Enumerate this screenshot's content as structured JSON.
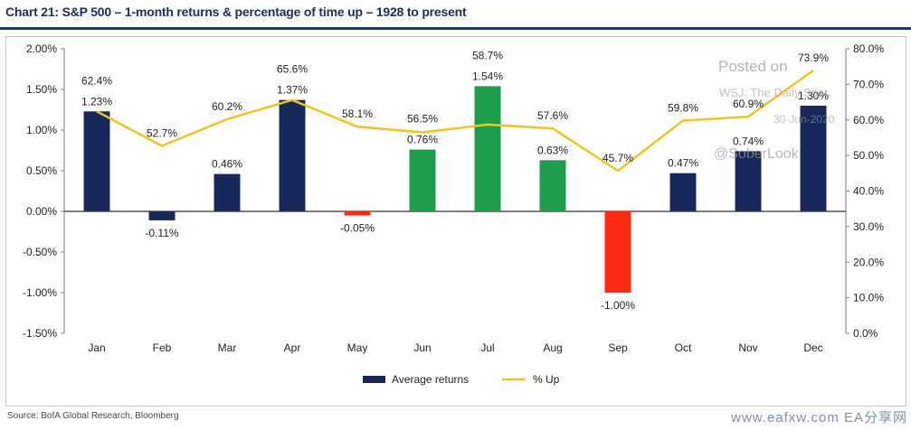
{
  "title": "Chart 21: S&P 500 – 1-month returns & percentage of time up – 1928 to present",
  "source": "Source: BofA Global Research, Bloomberg",
  "watermark": "www.eafxw.com EA分享网",
  "overlay_text": [
    "Posted on",
    "WSJ: The Daily Shot",
    "30-Jun-2020",
    "@SoberLook"
  ],
  "colors": {
    "navy": "#17285a",
    "green": "#1e9e4b",
    "red": "#ff2a12",
    "line": "#f2c31f"
  },
  "chart_data": {
    "type": "bar",
    "categories": [
      "Jan",
      "Feb",
      "Mar",
      "Apr",
      "May",
      "Jun",
      "Jul",
      "Aug",
      "Sep",
      "Oct",
      "Nov",
      "Dec"
    ],
    "series": [
      {
        "name": "Average returns",
        "axis": "left",
        "values": [
          1.23,
          -0.11,
          0.46,
          1.37,
          -0.05,
          0.76,
          1.54,
          0.63,
          -1.0,
          0.47,
          0.74,
          1.3
        ],
        "labels": [
          "1.23%",
          "-0.11%",
          "0.46%",
          "1.37%",
          "-0.05%",
          "0.76%",
          "1.54%",
          "0.63%",
          "-1.00%",
          "0.47%",
          "0.74%",
          "1.30%"
        ],
        "bar_colors": [
          "navy",
          "navy",
          "navy",
          "navy",
          "red",
          "green",
          "green",
          "green",
          "red",
          "navy",
          "navy",
          "navy"
        ]
      },
      {
        "name": "% Up",
        "axis": "right",
        "type": "line",
        "values": [
          62.4,
          52.7,
          60.2,
          65.6,
          58.1,
          56.5,
          58.7,
          57.6,
          45.7,
          59.8,
          60.9,
          73.9
        ],
        "labels": [
          "62.4%",
          "52.7%",
          "60.2%",
          "65.6%",
          "58.1%",
          "56.5%",
          "58.7%",
          "57.6%",
          "45.7%",
          "59.8%",
          "60.9%",
          "73.9%"
        ]
      }
    ],
    "left_axis": {
      "min": -1.5,
      "max": 2.0,
      "ticks": [
        "2.00%",
        "1.50%",
        "1.00%",
        "0.50%",
        "0.00%",
        "-0.50%",
        "-1.00%",
        "-1.50%"
      ]
    },
    "right_axis": {
      "min": 0,
      "max": 80,
      "ticks": [
        "80.0%",
        "70.0%",
        "60.0%",
        "50.0%",
        "40.0%",
        "30.0%",
        "20.0%",
        "10.0%",
        "0.0%"
      ]
    },
    "grid": false,
    "legend": "bottom"
  }
}
